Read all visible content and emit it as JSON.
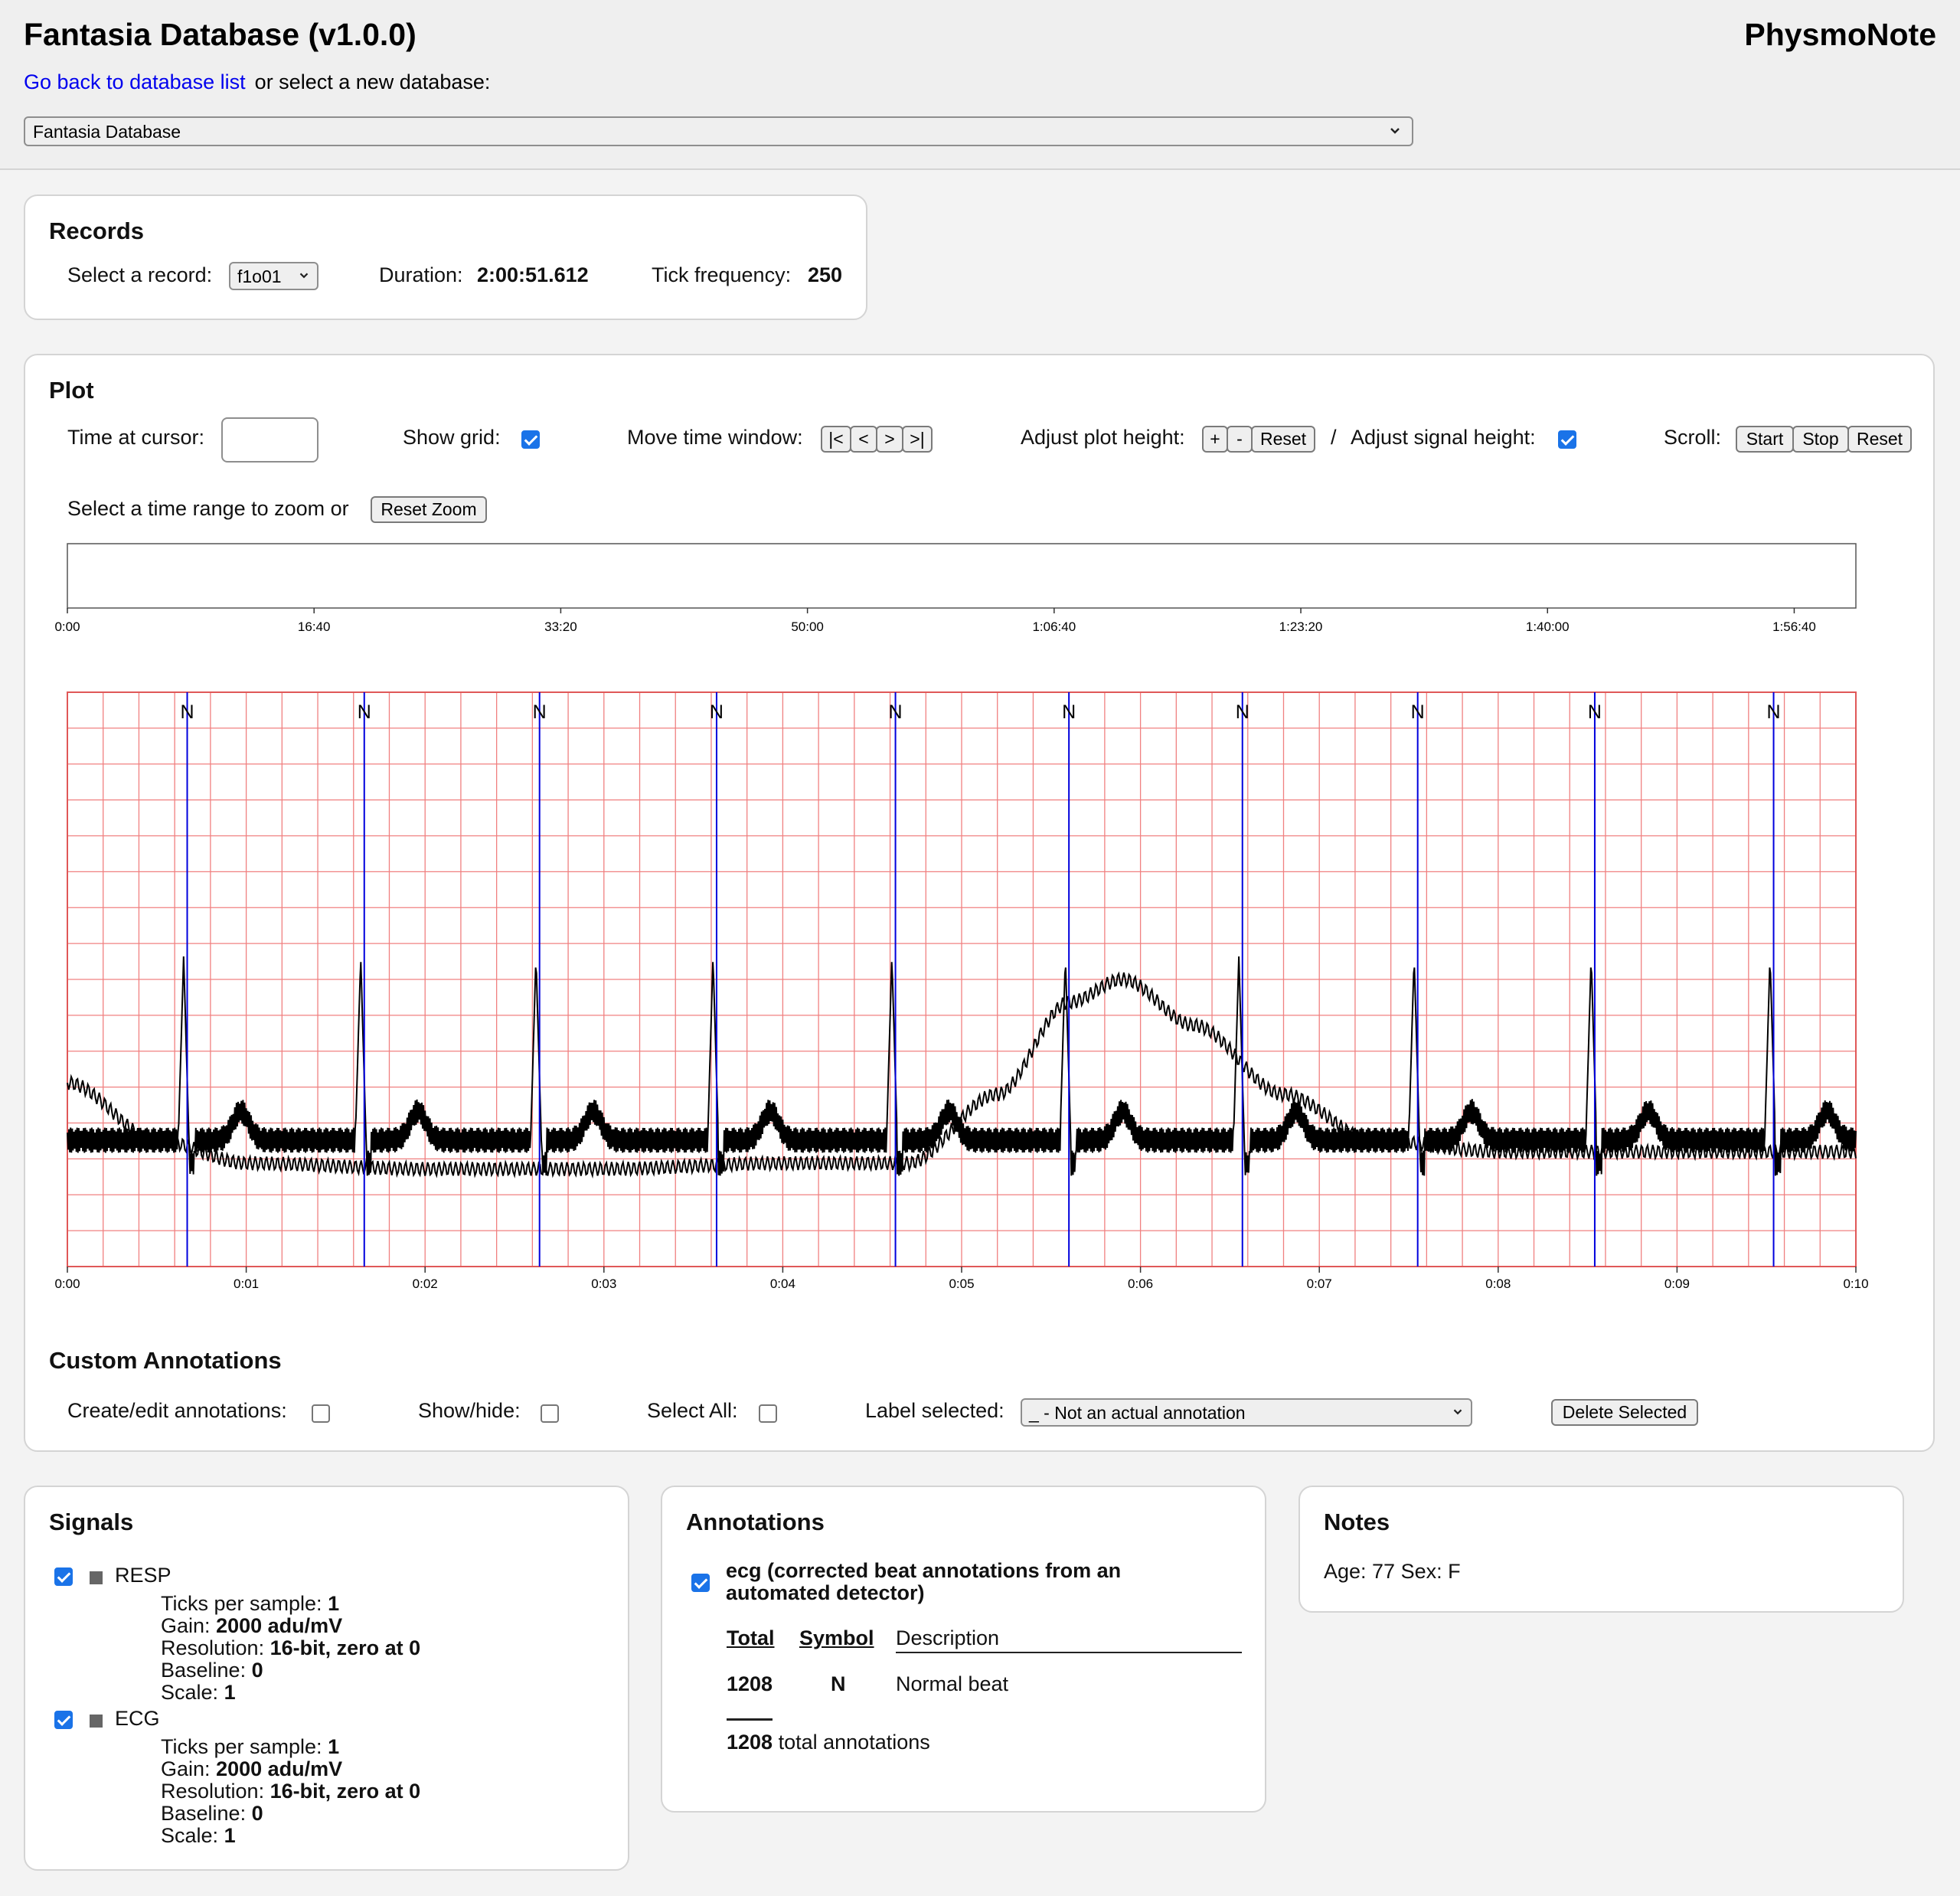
{
  "header": {
    "title": "Fantasia Database (v1.0.0)",
    "brand": "PhysmoNote",
    "back_link": "Go back to database list",
    "select_prompt": "or select a new database:",
    "database_selected": "Fantasia Database"
  },
  "records": {
    "title": "Records",
    "select_label": "Select a record:",
    "record_selected": "f1o01",
    "duration_label": "Duration:",
    "duration_value": "2:00:51.612",
    "tick_label": "Tick frequency:",
    "tick_value": "250"
  },
  "plot": {
    "title": "Plot",
    "time_cursor_label": "Time at cursor:",
    "time_cursor_value": "",
    "show_grid_label": "Show grid:",
    "show_grid": true,
    "move_window_label": "Move time window:",
    "move_buttons": [
      "|<",
      "<",
      ">",
      ">|"
    ],
    "adjust_plot_label": "Adjust plot height:",
    "plot_height_buttons": [
      "+",
      "-",
      "Reset"
    ],
    "slash": "/",
    "adjust_signal_label": "Adjust signal height:",
    "adjust_signal": true,
    "scroll_label": "Scroll:",
    "scroll_buttons": [
      "Start",
      "Stop",
      "Reset"
    ],
    "zoom_label": "Select a time range to zoom or",
    "reset_zoom": "Reset Zoom",
    "overview_ticks": [
      "0:00",
      "16:40",
      "33:20",
      "50:00",
      "1:06:40",
      "1:23:20",
      "1:40:00",
      "1:56:40"
    ],
    "main_ticks": [
      "0:00",
      "0:01",
      "0:02",
      "0:03",
      "0:04",
      "0:05",
      "0:06",
      "0:07",
      "0:08",
      "0:09",
      "0:10"
    ]
  },
  "chart_data": {
    "type": "line",
    "x_unit": "seconds",
    "xlim": [
      0,
      10
    ],
    "annotation_symbol": "N",
    "beat_times": [
      0.67,
      1.66,
      2.64,
      3.63,
      4.63,
      5.6,
      6.57,
      7.55,
      8.54,
      9.54
    ],
    "series": [
      {
        "name": "RESP",
        "x": [
          0,
          0.5,
          1,
          2,
          3,
          4,
          4.7,
          5.2,
          5.6,
          5.9,
          6.3,
          6.8,
          7.3,
          8,
          9,
          10
        ],
        "y": [
          0.68,
          0.78,
          0.82,
          0.83,
          0.83,
          0.82,
          0.82,
          0.7,
          0.54,
          0.5,
          0.58,
          0.7,
          0.78,
          0.8,
          0.8,
          0.8
        ]
      },
      {
        "name": "ECG",
        "baseline": 0.78,
        "r_peak": 0.46,
        "note": ""
      }
    ]
  },
  "custom_annotations": {
    "title": "Custom Annotations",
    "create_label": "Create/edit annotations:",
    "show_label": "Show/hide:",
    "select_all_label": "Select All:",
    "label_selected_label": "Label selected:",
    "label_selected_value": "_ - Not an actual annotation",
    "delete_button": "Delete Selected"
  },
  "signals": {
    "title": "Signals",
    "items": [
      {
        "name": "RESP",
        "ticks_label": "Ticks per sample:",
        "ticks": "1",
        "gain_label": "Gain:",
        "gain": "2000 adu/mV",
        "res_label": "Resolution:",
        "res": "16-bit, zero at 0",
        "base_label": "Baseline:",
        "base": "0",
        "scale_label": "Scale:",
        "scale": "1"
      },
      {
        "name": "ECG",
        "ticks_label": "Ticks per sample:",
        "ticks": "1",
        "gain_label": "Gain:",
        "gain": "2000 adu/mV",
        "res_label": "Resolution:",
        "res": "16-bit, zero at 0",
        "base_label": "Baseline:",
        "base": "0",
        "scale_label": "Scale:",
        "scale": "1"
      }
    ]
  },
  "annotations": {
    "title": "Annotations",
    "group_line1": "ecg (corrected beat annotations from an",
    "group_line2": "automated detector)",
    "col_total": "Total",
    "col_symbol": "Symbol",
    "col_description": "Description",
    "row_total": "1208",
    "row_symbol": "N",
    "row_description": "Normal beat",
    "sum_total": "1208",
    "sum_label": "total annotations"
  },
  "notes": {
    "title": "Notes",
    "text": "Age: 77 Sex: F"
  },
  "colors": {
    "grid": "#f08080",
    "annotation_line": "#0000dd",
    "signal": "#000000",
    "checkbox": "#1a73e8",
    "link": "#0000ee"
  }
}
